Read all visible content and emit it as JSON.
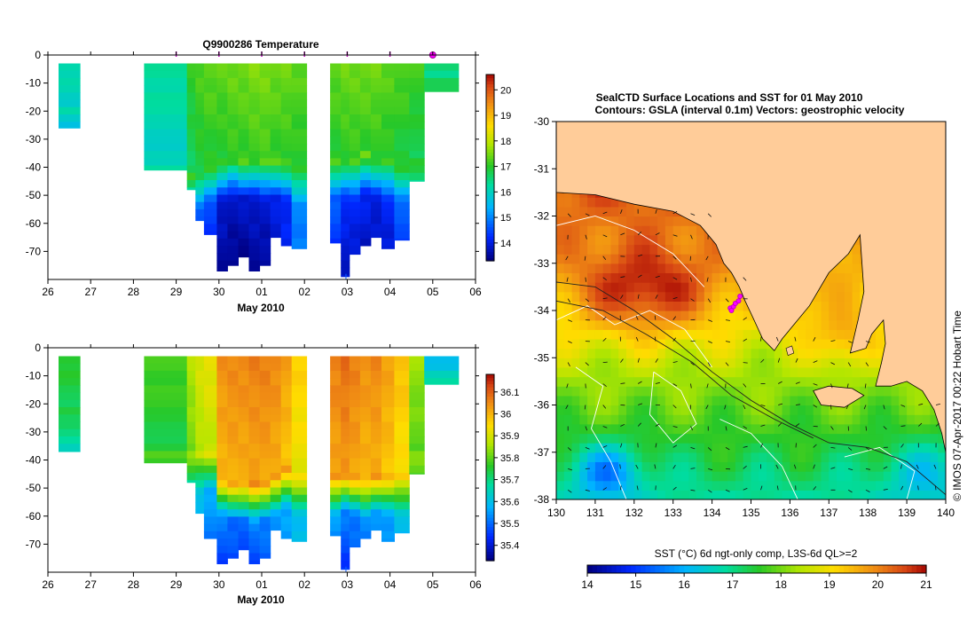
{
  "chart_data": [
    {
      "id": "temperature",
      "type": "heatmap",
      "title": "Q9900286  Temperature",
      "xlabel": "May 2010",
      "ylabel": "",
      "xticks": [
        "26",
        "27",
        "28",
        "29",
        "30",
        "01",
        "02",
        "03",
        "04",
        "05",
        "06"
      ],
      "xlim": [
        26,
        36
      ],
      "ylim": [
        -80,
        0
      ],
      "yticks": [
        "0",
        "-10",
        "-20",
        "-30",
        "-40",
        "-50",
        "-60",
        "-70"
      ],
      "colorbar": {
        "ticks": [
          "14",
          "15",
          "16",
          "17",
          "18",
          "19",
          "20"
        ],
        "min": 13.3,
        "max": 20.6
      },
      "profile_markers": [
        29.0,
        30.0,
        31.0,
        32.0,
        33.0,
        34.0,
        35.0
      ],
      "profiles": [
        {
          "x0": 26.25,
          "x1": 26.75,
          "bottom": -26,
          "surface": 16.2,
          "thermo": -18,
          "deep": 15.0,
          "deepest": 15.0
        },
        {
          "x0": 28.25,
          "x1": 29.25,
          "bottom": -41,
          "surface": 16.3,
          "thermo": -38,
          "deep": 15.6,
          "deepest": 15.6
        },
        {
          "x0": 29.25,
          "x1": 29.45,
          "bottom": -48,
          "surface": 17.0,
          "thermo": -42,
          "deep": 14.8,
          "deepest": 14.6
        },
        {
          "x0": 29.45,
          "x1": 29.65,
          "bottom": -59,
          "surface": 17.2,
          "thermo": -40,
          "deep": 14.6,
          "deepest": 14.3
        },
        {
          "x0": 29.65,
          "x1": 29.95,
          "bottom": -64,
          "surface": 17.3,
          "thermo": -38,
          "deep": 14.4,
          "deepest": 14.0
        },
        {
          "x0": 29.95,
          "x1": 30.2,
          "bottom": -77,
          "surface": 17.3,
          "thermo": -36,
          "deep": 13.9,
          "deepest": 13.5
        },
        {
          "x0": 30.2,
          "x1": 30.45,
          "bottom": -75,
          "surface": 17.4,
          "thermo": -35,
          "deep": 13.8,
          "deepest": 13.4
        },
        {
          "x0": 30.45,
          "x1": 30.7,
          "bottom": -72,
          "surface": 17.4,
          "thermo": -36,
          "deep": 13.8,
          "deepest": 13.4
        },
        {
          "x0": 30.7,
          "x1": 30.95,
          "bottom": -77,
          "surface": 17.5,
          "thermo": -35,
          "deep": 13.9,
          "deepest": 13.5
        },
        {
          "x0": 30.95,
          "x1": 31.2,
          "bottom": -75,
          "surface": 17.5,
          "thermo": -36,
          "deep": 13.9,
          "deepest": 13.5
        },
        {
          "x0": 31.2,
          "x1": 31.45,
          "bottom": -65,
          "surface": 17.4,
          "thermo": -36,
          "deep": 14.0,
          "deepest": 13.7
        },
        {
          "x0": 31.45,
          "x1": 31.7,
          "bottom": -68,
          "surface": 17.4,
          "thermo": -36,
          "deep": 14.2,
          "deepest": 14.0
        },
        {
          "x0": 31.7,
          "x1": 32.05,
          "bottom": -69,
          "surface": 17.3,
          "thermo": -38,
          "deep": 15.0,
          "deepest": 14.8
        },
        {
          "x0": 32.6,
          "x1": 32.85,
          "bottom": -67,
          "surface": 17.3,
          "thermo": -36,
          "deep": 14.6,
          "deepest": 14.2
        },
        {
          "x0": 32.85,
          "x1": 33.05,
          "bottom": -79,
          "surface": 17.4,
          "thermo": -35,
          "deep": 14.3,
          "deepest": 13.8
        },
        {
          "x0": 33.05,
          "x1": 33.3,
          "bottom": -71,
          "surface": 17.4,
          "thermo": -36,
          "deep": 14.2,
          "deepest": 13.8
        },
        {
          "x0": 33.3,
          "x1": 33.55,
          "bottom": -68,
          "surface": 17.4,
          "thermo": -34,
          "deep": 14.1,
          "deepest": 13.7
        },
        {
          "x0": 33.55,
          "x1": 33.8,
          "bottom": -65,
          "surface": 17.4,
          "thermo": -35,
          "deep": 14.0,
          "deepest": 13.7
        },
        {
          "x0": 33.8,
          "x1": 34.1,
          "bottom": -69,
          "surface": 17.3,
          "thermo": -36,
          "deep": 14.2,
          "deepest": 13.8
        },
        {
          "x0": 34.1,
          "x1": 34.45,
          "bottom": -66,
          "surface": 17.2,
          "thermo": -38,
          "deep": 14.6,
          "deepest": 14.3
        },
        {
          "x0": 34.45,
          "x1": 34.8,
          "bottom": -45,
          "surface": 17.1,
          "thermo": -36,
          "deep": 15.6,
          "deepest": 15.6
        },
        {
          "x0": 34.8,
          "x1": 35.6,
          "bottom": -13,
          "surface": 16.6,
          "thermo": -8,
          "deep": 16.6,
          "deepest": 16.6
        }
      ],
      "cast_line": {
        "x": 32.97,
        "top": -78,
        "bottom": -80
      }
    },
    {
      "id": "salinity",
      "type": "heatmap",
      "title": "",
      "xlabel": "May 2010",
      "ylabel": "",
      "xticks": [
        "26",
        "27",
        "28",
        "29",
        "30",
        "01",
        "02",
        "03",
        "04",
        "05",
        "06"
      ],
      "xlim": [
        26,
        36
      ],
      "ylim": [
        -80,
        0
      ],
      "yticks": [
        "0",
        "-10",
        "-20",
        "-30",
        "-40",
        "-50",
        "-60",
        "-70"
      ],
      "colorbar": {
        "ticks": [
          "35.4",
          "35.5",
          "35.6",
          "35.7",
          "35.8",
          "35.9",
          "36",
          "36.1"
        ],
        "min": 35.33,
        "max": 36.18
      },
      "profiles": [
        {
          "x0": 26.25,
          "x1": 26.75,
          "bottom": -37,
          "surface": 35.76,
          "thermo": -20,
          "deep": 35.64,
          "deepest": 35.64
        },
        {
          "x0": 28.25,
          "x1": 29.25,
          "bottom": -41,
          "surface": 35.78,
          "thermo": -36,
          "deep": 35.72,
          "deepest": 35.72
        },
        {
          "x0": 29.25,
          "x1": 29.45,
          "bottom": -48,
          "surface": 35.86,
          "thermo": -36,
          "deep": 35.62,
          "deepest": 35.6
        },
        {
          "x0": 29.45,
          "x1": 29.65,
          "bottom": -59,
          "surface": 35.9,
          "thermo": -36,
          "deep": 35.6,
          "deepest": 35.55
        },
        {
          "x0": 29.65,
          "x1": 29.95,
          "bottom": -68,
          "surface": 35.92,
          "thermo": -36,
          "deep": 35.56,
          "deepest": 35.5
        },
        {
          "x0": 29.95,
          "x1": 30.2,
          "bottom": -77,
          "surface": 36.04,
          "thermo": -45,
          "deep": 35.52,
          "deepest": 35.44
        },
        {
          "x0": 30.2,
          "x1": 30.45,
          "bottom": -75,
          "surface": 36.05,
          "thermo": -46,
          "deep": 35.5,
          "deepest": 35.44
        },
        {
          "x0": 30.45,
          "x1": 30.7,
          "bottom": -72,
          "surface": 36.05,
          "thermo": -46,
          "deep": 35.5,
          "deepest": 35.44
        },
        {
          "x0": 30.7,
          "x1": 30.95,
          "bottom": -77,
          "surface": 36.06,
          "thermo": -47,
          "deep": 35.52,
          "deepest": 35.44
        },
        {
          "x0": 30.95,
          "x1": 31.2,
          "bottom": -75,
          "surface": 36.06,
          "thermo": -46,
          "deep": 35.52,
          "deepest": 35.46
        },
        {
          "x0": 31.2,
          "x1": 31.45,
          "bottom": -65,
          "surface": 36.05,
          "thermo": -44,
          "deep": 35.54,
          "deepest": 35.5
        },
        {
          "x0": 31.45,
          "x1": 31.7,
          "bottom": -68,
          "surface": 36.02,
          "thermo": -42,
          "deep": 35.56,
          "deepest": 35.52
        },
        {
          "x0": 31.7,
          "x1": 32.05,
          "bottom": -69,
          "surface": 35.96,
          "thermo": -44,
          "deep": 35.6,
          "deepest": 35.56
        },
        {
          "x0": 32.6,
          "x1": 32.85,
          "bottom": -67,
          "surface": 36.06,
          "thermo": -44,
          "deep": 35.56,
          "deepest": 35.5
        },
        {
          "x0": 32.85,
          "x1": 33.05,
          "bottom": -79,
          "surface": 36.08,
          "thermo": -43,
          "deep": 35.52,
          "deepest": 35.44
        },
        {
          "x0": 33.05,
          "x1": 33.3,
          "bottom": -71,
          "surface": 36.06,
          "thermo": -44,
          "deep": 35.52,
          "deepest": 35.46
        },
        {
          "x0": 33.3,
          "x1": 33.55,
          "bottom": -68,
          "surface": 36.04,
          "thermo": -45,
          "deep": 35.54,
          "deepest": 35.48
        },
        {
          "x0": 33.55,
          "x1": 33.8,
          "bottom": -65,
          "surface": 36.05,
          "thermo": -44,
          "deep": 35.54,
          "deepest": 35.48
        },
        {
          "x0": 33.8,
          "x1": 34.1,
          "bottom": -69,
          "surface": 36.02,
          "thermo": -44,
          "deep": 35.56,
          "deepest": 35.5
        },
        {
          "x0": 34.1,
          "x1": 34.45,
          "bottom": -66,
          "surface": 35.98,
          "thermo": -44,
          "deep": 35.6,
          "deepest": 35.56
        },
        {
          "x0": 34.45,
          "x1": 34.8,
          "bottom": -45,
          "surface": 35.84,
          "thermo": -36,
          "deep": 35.72,
          "deepest": 35.72
        },
        {
          "x0": 34.8,
          "x1": 35.6,
          "bottom": -13,
          "surface": 35.6,
          "thermo": -5,
          "deep": 35.74,
          "deepest": 35.74
        }
      ],
      "cast_line": {
        "x": 32.97,
        "top": -78,
        "bottom": -80
      }
    },
    {
      "id": "sst_map",
      "type": "heatmap",
      "title": "SealCTD Surface Locations and SST for 01 May 2010",
      "subtitle": "Contours: GSLA (interval 0.1m) Vectors: geostrophic velocity",
      "xlim": [
        130,
        140
      ],
      "ylim": [
        -38,
        -30
      ],
      "xticks": [
        "130",
        "131",
        "132",
        "133",
        "134",
        "135",
        "136",
        "137",
        "138",
        "139",
        "140"
      ],
      "yticks": [
        "-30",
        "-31",
        "-32",
        "-33",
        "-34",
        "-35",
        "-36",
        "-37",
        "-38"
      ],
      "colorbar_label": "SST (°C) 6d ngt-only comp, L3S-6d QL>=2",
      "colorbar": {
        "ticks": [
          "14",
          "15",
          "16",
          "17",
          "18",
          "19",
          "20",
          "21"
        ],
        "min": 14,
        "max": 21
      },
      "side_annotation": "© IMOS 07-Apr-2017 00:22 Hobart Time",
      "seal_locations": [
        [
          134.47,
          -33.95
        ],
        [
          134.55,
          -33.92
        ],
        [
          134.6,
          -33.85
        ],
        [
          134.68,
          -33.8
        ],
        [
          134.72,
          -33.7
        ],
        [
          134.5,
          -34.0
        ]
      ],
      "coastline": [
        [
          130,
          -31.5
        ],
        [
          131,
          -31.55
        ],
        [
          132,
          -31.75
        ],
        [
          133,
          -31.9
        ],
        [
          133.7,
          -32.2
        ],
        [
          134.1,
          -32.6
        ],
        [
          134.3,
          -33.0
        ],
        [
          134.5,
          -33.2
        ],
        [
          134.7,
          -33.5
        ],
        [
          134.85,
          -33.8
        ],
        [
          135.05,
          -34.15
        ],
        [
          135.3,
          -34.6
        ],
        [
          135.6,
          -34.85
        ],
        [
          135.8,
          -34.6
        ],
        [
          136.1,
          -34.3
        ],
        [
          136.5,
          -33.9
        ],
        [
          137.0,
          -33.2
        ],
        [
          137.5,
          -32.8
        ],
        [
          137.8,
          -32.4
        ],
        [
          137.85,
          -33.0
        ],
        [
          137.9,
          -33.6
        ],
        [
          137.75,
          -34.2
        ],
        [
          137.55,
          -34.9
        ],
        [
          137.95,
          -34.8
        ],
        [
          138.1,
          -34.5
        ],
        [
          138.4,
          -34.2
        ],
        [
          138.45,
          -34.7
        ],
        [
          138.35,
          -35.1
        ],
        [
          138.2,
          -35.6
        ],
        [
          138.6,
          -35.6
        ],
        [
          139.0,
          -35.5
        ],
        [
          139.4,
          -35.7
        ],
        [
          139.7,
          -36.1
        ],
        [
          139.9,
          -36.6
        ],
        [
          140,
          -37.0
        ],
        [
          140,
          -30
        ],
        [
          130,
          -30
        ]
      ],
      "kangaroo_island": [
        [
          136.6,
          -35.7
        ],
        [
          137.0,
          -35.6
        ],
        [
          137.6,
          -35.65
        ],
        [
          137.9,
          -35.8
        ],
        [
          137.4,
          -36.05
        ],
        [
          136.8,
          -36.0
        ]
      ],
      "eyre_island": [
        [
          135.9,
          -34.8
        ],
        [
          136.05,
          -34.75
        ],
        [
          136.1,
          -34.9
        ],
        [
          135.95,
          -34.95
        ]
      ]
    }
  ]
}
